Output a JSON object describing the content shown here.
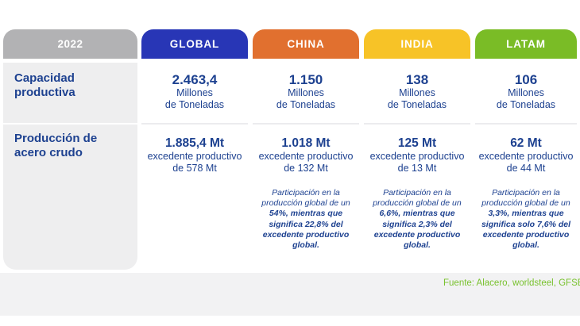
{
  "year": "2022",
  "row_labels": {
    "capacity_line1": "Capacidad",
    "capacity_line2": "productiva",
    "production_line1": "Producción de",
    "production_line2": "acero crudo"
  },
  "columns": [
    {
      "name": "GLOBAL",
      "header_color": "#2836b6",
      "capacity_value": "2.463,4",
      "capacity_unit1": "Millones",
      "capacity_unit2": "de Toneladas",
      "production_value": "1.885,4 Mt",
      "production_sub1": "excedente productivo",
      "production_sub2": "de 578 Mt",
      "note_regular": "",
      "note_bold": ""
    },
    {
      "name": "CHINA",
      "header_color": "#e1702f",
      "capacity_value": "1.150",
      "capacity_unit1": "Millones",
      "capacity_unit2": "de Toneladas",
      "production_value": "1.018 Mt",
      "production_sub1": "excedente productivo",
      "production_sub2": "de 132 Mt",
      "note_regular": "Participación en la producción global de un",
      "note_bold": "54%, mientras que significa 22,8% del excedente productivo global."
    },
    {
      "name": "INDIA",
      "header_color": "#f7c327",
      "capacity_value": "138",
      "capacity_unit1": "Millones",
      "capacity_unit2": "de Toneladas",
      "production_value": "125 Mt",
      "production_sub1": "excedente productivo",
      "production_sub2": "de 13 Mt",
      "note_regular": "Participación en la producción global de un",
      "note_bold": "6,6%, mientras que significa 2,3% del excedente productivo global."
    },
    {
      "name": "LATAM",
      "header_color": "#7abc26",
      "capacity_value": "106",
      "capacity_unit1": "Millones",
      "capacity_unit2": "de Toneladas",
      "production_value": "62 Mt",
      "production_sub1": "excedente productivo",
      "production_sub2": "de 44 Mt",
      "note_regular": "Participación en la producción global de un",
      "note_bold": "3,3%, mientras que significa solo 7,6% del excedente productivo global."
    }
  ],
  "footer": {
    "source": "Fuente: Alacero, worldsteel, GFSEC"
  },
  "colors": {
    "year_header": "#b2b2b4",
    "label_panel": "#eeeeef",
    "global": "#2836b6",
    "china": "#e1702f",
    "india": "#f7c327",
    "latam": "#7abc26",
    "navy_text": "#1d4190",
    "source_green": "#79c22e",
    "bottom_band": "#f2f2f3"
  },
  "chart_data": {
    "type": "table",
    "title": "2022",
    "columns": [
      "GLOBAL",
      "CHINA",
      "INDIA",
      "LATAM"
    ],
    "rows": [
      {
        "label": "Capacidad productiva (Millones de Toneladas)",
        "values": [
          2463.4,
          1150,
          138,
          106
        ]
      },
      {
        "label": "Producción de acero crudo (Mt)",
        "values": [
          1885.4,
          1018,
          125,
          62
        ]
      },
      {
        "label": "Excedente productivo (Mt)",
        "values": [
          578,
          132,
          13,
          44
        ]
      },
      {
        "label": "Participación en la producción global (%)",
        "values": [
          null,
          54,
          6.6,
          3.3
        ]
      },
      {
        "label": "Participación del excedente productivo global (%)",
        "values": [
          null,
          22.8,
          2.3,
          7.6
        ]
      }
    ],
    "source": "Fuente: Alacero, worldsteel, GFSEC"
  }
}
